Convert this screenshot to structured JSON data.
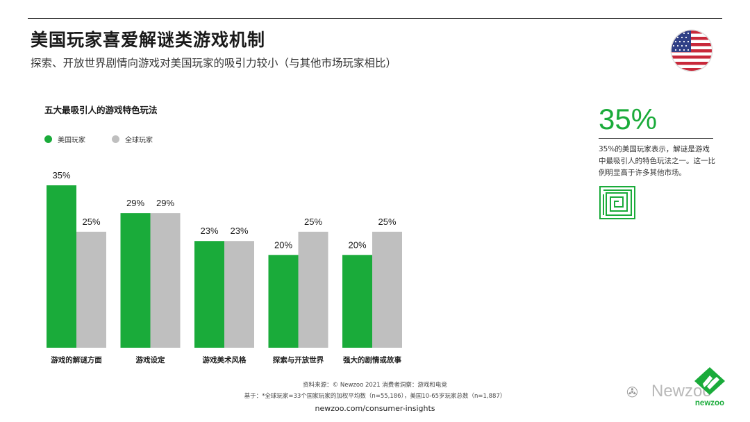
{
  "header": {
    "title": "美国玩家喜爱解谜类游戏机制",
    "subtitle": "探索、开放世界剧情向游戏对美国玩家的吸引力较小（与其他市场玩家相比）"
  },
  "colors": {
    "us": "#1aab3a",
    "global": "#bfbfbf"
  },
  "chart_data": {
    "type": "bar",
    "title": "五大最吸引人的游戏特色玩法",
    "categories": [
      "游戏的解谜方面",
      "游戏设定",
      "游戏美术风格",
      "探索与开放世界",
      "强大的剧情或故事"
    ],
    "series": [
      {
        "name": "美国玩家",
        "values": [
          35,
          29,
          23,
          20,
          20
        ],
        "labels": [
          "35%",
          "29%",
          "23%",
          "20%",
          "20%"
        ]
      },
      {
        "name": "全球玩家",
        "values": [
          25,
          29,
          23,
          25,
          25
        ],
        "labels": [
          "25%",
          "29%",
          "23%",
          "25%",
          "25%"
        ]
      }
    ],
    "ylim": [
      0,
      35
    ],
    "grid": false,
    "legend_position": "top-left"
  },
  "callout": {
    "big_value": "35%",
    "text": "35%的美国玩家表示，解谜是游戏中最吸引人的特色玩法之一。这一比例明显高于许多其他市场。"
  },
  "footer": {
    "source": "资料来源：© Newzoo 2021 消费者洞察：游戏和电竞",
    "base": "基于：*全球玩家=33个国家玩家的加权平均数（n=55,186），美国10-65岁玩家总数（n=1,887）",
    "url": "newzoo.com/consumer-insights",
    "watermark": "Newzoo",
    "logo_text": "newzoo"
  }
}
